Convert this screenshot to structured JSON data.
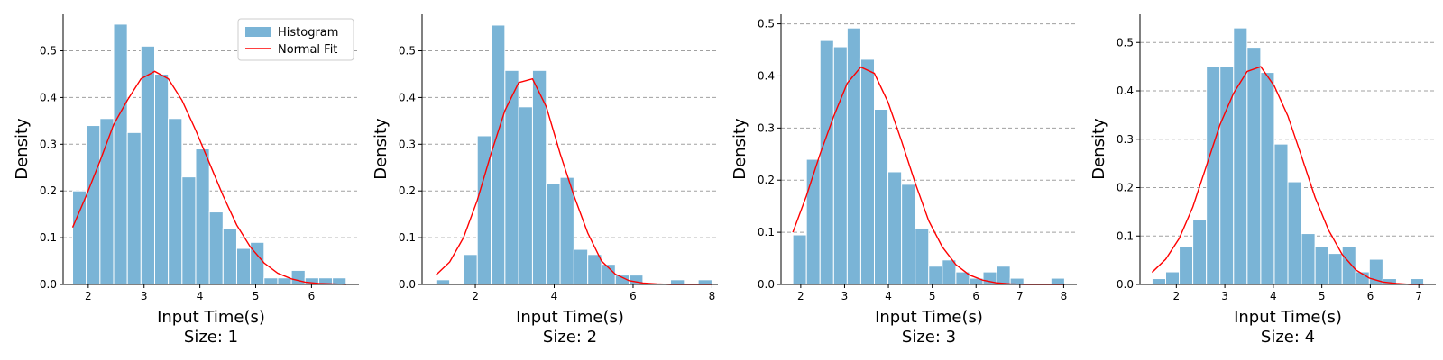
{
  "colors": {
    "bar": "#7ab4d6",
    "bar_edge": "#ffffff",
    "fit": "#ff0000",
    "grid": "#a0a0a0",
    "axis": "#000000"
  },
  "chart_data": [
    {
      "type": "bar",
      "title": "Size: 1",
      "xlabel": "Input Time(s)",
      "ylabel": "Density",
      "xlim": [
        1.55,
        6.85
      ],
      "ylim": [
        0,
        0.58
      ],
      "xticks": [
        2,
        3,
        4,
        5,
        6
      ],
      "yticks": [
        0.0,
        0.1,
        0.2,
        0.3,
        0.4,
        0.5
      ],
      "grid": "horizontal-dashed",
      "legend": {
        "position": "top-right",
        "entries": [
          "Histogram",
          "Normal Fit"
        ]
      },
      "series": [
        {
          "name": "Histogram",
          "type": "bar",
          "bin_edges": [
            1.72,
            1.965,
            2.21,
            2.455,
            2.7,
            2.945,
            3.19,
            3.435,
            3.68,
            3.925,
            4.17,
            4.415,
            4.66,
            4.905,
            5.15,
            5.395,
            5.64,
            5.885,
            6.13,
            6.375,
            6.62
          ],
          "values": [
            0.2,
            0.34,
            0.355,
            0.557,
            0.325,
            0.51,
            0.45,
            0.355,
            0.23,
            0.29,
            0.155,
            0.12,
            0.077,
            0.09,
            0.014,
            0.014,
            0.03,
            0.014,
            0.014,
            0.014
          ]
        },
        {
          "name": "Normal Fit",
          "type": "line",
          "x": [
            1.72,
            1.965,
            2.21,
            2.455,
            2.7,
            2.945,
            3.19,
            3.435,
            3.68,
            3.925,
            4.17,
            4.415,
            4.66,
            4.905,
            5.15,
            5.395,
            5.64,
            5.885,
            6.13,
            6.375,
            6.62
          ],
          "y": [
            0.122,
            0.19,
            0.264,
            0.342,
            0.394,
            0.44,
            0.456,
            0.44,
            0.394,
            0.33,
            0.26,
            0.19,
            0.127,
            0.08,
            0.046,
            0.024,
            0.012,
            0.005,
            0.002,
            0.001,
            0.0
          ]
        }
      ]
    },
    {
      "type": "bar",
      "title": "Size: 2",
      "xlabel": "Input Time(s)",
      "ylabel": "Density",
      "xlim": [
        0.65,
        8.15
      ],
      "ylim": [
        0,
        0.58
      ],
      "xticks": [
        2,
        4,
        6,
        8
      ],
      "yticks": [
        0.0,
        0.1,
        0.2,
        0.3,
        0.4,
        0.5
      ],
      "grid": "horizontal-dashed",
      "series": [
        {
          "name": "Histogram",
          "type": "bar",
          "bin_edges": [
            1.0,
            1.35,
            1.7,
            2.05,
            2.4,
            2.75,
            3.1,
            3.45,
            3.8,
            4.15,
            4.5,
            4.85,
            5.2,
            5.55,
            5.9,
            6.25,
            6.6,
            6.95,
            7.3,
            7.65,
            8.0
          ],
          "values": [
            0.01,
            0.0,
            0.064,
            0.318,
            0.555,
            0.458,
            0.38,
            0.458,
            0.216,
            0.229,
            0.075,
            0.064,
            0.043,
            0.02,
            0.02,
            0.0,
            0.0,
            0.01,
            0.0,
            0.01
          ]
        },
        {
          "name": "Normal Fit",
          "type": "line",
          "x": [
            1.0,
            1.35,
            1.7,
            2.05,
            2.4,
            2.75,
            3.1,
            3.45,
            3.8,
            4.15,
            4.5,
            4.85,
            5.2,
            5.55,
            5.9,
            6.25,
            6.6,
            6.95,
            7.3,
            7.65,
            8.0
          ],
          "y": [
            0.02,
            0.048,
            0.1,
            0.18,
            0.28,
            0.372,
            0.432,
            0.44,
            0.38,
            0.28,
            0.19,
            0.11,
            0.05,
            0.022,
            0.008,
            0.003,
            0.001,
            0.0,
            0.0,
            0.0,
            0.0
          ]
        }
      ]
    },
    {
      "type": "bar",
      "title": "Size: 3",
      "xlabel": "Input Time(s)",
      "ylabel": "Density",
      "xlim": [
        1.55,
        8.3
      ],
      "ylim": [
        0,
        0.52
      ],
      "xticks": [
        2,
        3,
        4,
        5,
        6,
        7,
        8
      ],
      "yticks": [
        0.0,
        0.1,
        0.2,
        0.3,
        0.4,
        0.5
      ],
      "grid": "horizontal-dashed",
      "series": [
        {
          "name": "Histogram",
          "type": "bar",
          "bin_edges": [
            1.82,
            2.13,
            2.44,
            2.75,
            3.06,
            3.37,
            3.68,
            3.99,
            4.3,
            4.61,
            4.92,
            5.23,
            5.54,
            5.85,
            6.16,
            6.47,
            6.78,
            7.09,
            7.4,
            7.71,
            8.02
          ],
          "values": [
            0.095,
            0.24,
            0.468,
            0.456,
            0.492,
            0.432,
            0.336,
            0.216,
            0.192,
            0.108,
            0.035,
            0.047,
            0.024,
            0.012,
            0.024,
            0.035,
            0.012,
            0.0,
            0.0,
            0.012
          ]
        },
        {
          "name": "Normal Fit",
          "type": "line",
          "x": [
            1.82,
            2.13,
            2.44,
            2.75,
            3.06,
            3.37,
            3.68,
            3.99,
            4.3,
            4.61,
            4.92,
            5.23,
            5.54,
            5.85,
            6.16,
            6.47,
            6.78,
            7.09,
            7.4,
            7.71,
            8.02
          ],
          "y": [
            0.1,
            0.17,
            0.25,
            0.322,
            0.386,
            0.417,
            0.405,
            0.35,
            0.275,
            0.195,
            0.122,
            0.072,
            0.038,
            0.018,
            0.008,
            0.003,
            0.001,
            0.0,
            0.0,
            0.0,
            0.0
          ]
        }
      ]
    },
    {
      "type": "bar",
      "title": "Size: 4",
      "xlabel": "Input Time(s)",
      "ylabel": "Density",
      "xlim": [
        1.25,
        7.35
      ],
      "ylim": [
        0,
        0.56
      ],
      "xticks": [
        2,
        3,
        4,
        5,
        6,
        7
      ],
      "yticks": [
        0.0,
        0.1,
        0.2,
        0.3,
        0.4,
        0.5
      ],
      "grid": "horizontal-dashed",
      "series": [
        {
          "name": "Histogram",
          "type": "bar",
          "bin_edges": [
            1.5,
            1.78,
            2.06,
            2.34,
            2.62,
            2.9,
            3.18,
            3.46,
            3.74,
            4.02,
            4.3,
            4.58,
            4.86,
            5.14,
            5.42,
            5.7,
            5.98,
            6.26,
            6.54,
            6.82,
            7.1
          ],
          "values": [
            0.012,
            0.026,
            0.078,
            0.133,
            0.45,
            0.45,
            0.53,
            0.49,
            0.438,
            0.29,
            0.212,
            0.105,
            0.078,
            0.064,
            0.078,
            0.026,
            0.052,
            0.012,
            0.0,
            0.012
          ]
        },
        {
          "name": "Normal Fit",
          "type": "line",
          "x": [
            1.5,
            1.78,
            2.06,
            2.34,
            2.62,
            2.9,
            3.18,
            3.46,
            3.74,
            4.02,
            4.3,
            4.58,
            4.86,
            5.14,
            5.42,
            5.7,
            5.98,
            6.26,
            6.54,
            6.82,
            7.1
          ],
          "y": [
            0.025,
            0.052,
            0.095,
            0.16,
            0.245,
            0.33,
            0.395,
            0.44,
            0.45,
            0.41,
            0.348,
            0.265,
            0.18,
            0.112,
            0.062,
            0.03,
            0.013,
            0.005,
            0.002,
            0.0,
            0.0
          ]
        }
      ]
    }
  ]
}
